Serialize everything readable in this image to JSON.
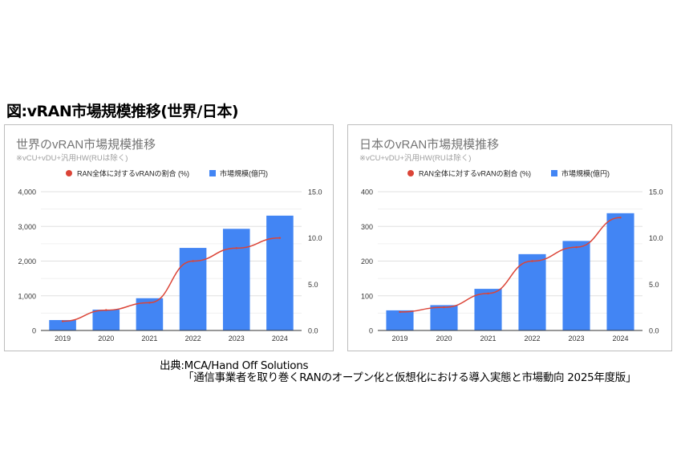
{
  "figure_title": "図:vRAN市場規模推移(世界/日本)",
  "source_line1": "出典:MCA/Hand Off Solutions",
  "source_line2": "「通信事業者を取り巻くRANのオープン化と仮想化における導入実態と市場動向 2025年度版」",
  "colors": {
    "bar": "#4285f4",
    "line": "#db4437",
    "grid": "#e0e0e0",
    "title": "#757575"
  },
  "chart_data": [
    {
      "type": "bar+line",
      "title": "世界のvRAN市場規模推移",
      "subtitle": "※vCU+vDU+汎用HW(RUは除く)",
      "legend_placement": "top",
      "categories": [
        "2019",
        "2020",
        "2021",
        "2022",
        "2023",
        "2024"
      ],
      "series": [
        {
          "name": "RAN全体に対するvRANの割合 (%)",
          "type": "line",
          "axis": "right",
          "values": [
            1.0,
            2.2,
            3.0,
            7.5,
            8.9,
            10.0
          ]
        },
        {
          "name": "市場規模(億円)",
          "type": "bar",
          "axis": "left",
          "values": [
            300,
            600,
            930,
            2380,
            2930,
            3310
          ]
        }
      ],
      "ylim_left": [
        0,
        4000
      ],
      "yticks_left": [
        "0",
        "1,000",
        "2,000",
        "3,000",
        "4,000"
      ],
      "ylim_right": [
        0,
        15
      ],
      "yticks_right": [
        "0.0",
        "5.0",
        "10.0",
        "15.0"
      ],
      "grid": true
    },
    {
      "type": "bar+line",
      "title": "日本のvRAN市場規模推移",
      "subtitle": "※vCU+vDU+汎用HW(RUは除く)",
      "legend_placement": "top",
      "categories": [
        "2019",
        "2020",
        "2021",
        "2022",
        "2023",
        "2024"
      ],
      "series": [
        {
          "name": "RAN全体に対するvRANの割合 (%)",
          "type": "line",
          "axis": "right",
          "values": [
            2.0,
            2.5,
            4.0,
            7.5,
            9.0,
            12.2
          ]
        },
        {
          "name": "市場規模(億円)",
          "type": "bar",
          "axis": "left",
          "values": [
            58,
            73,
            120,
            220,
            258,
            338
          ]
        }
      ],
      "ylim_left": [
        0,
        400
      ],
      "yticks_left": [
        "0",
        "100",
        "200",
        "300",
        "400"
      ],
      "ylim_right": [
        0,
        15
      ],
      "yticks_right": [
        "0.0",
        "5.0",
        "10.0",
        "15.0"
      ],
      "grid": true
    }
  ]
}
